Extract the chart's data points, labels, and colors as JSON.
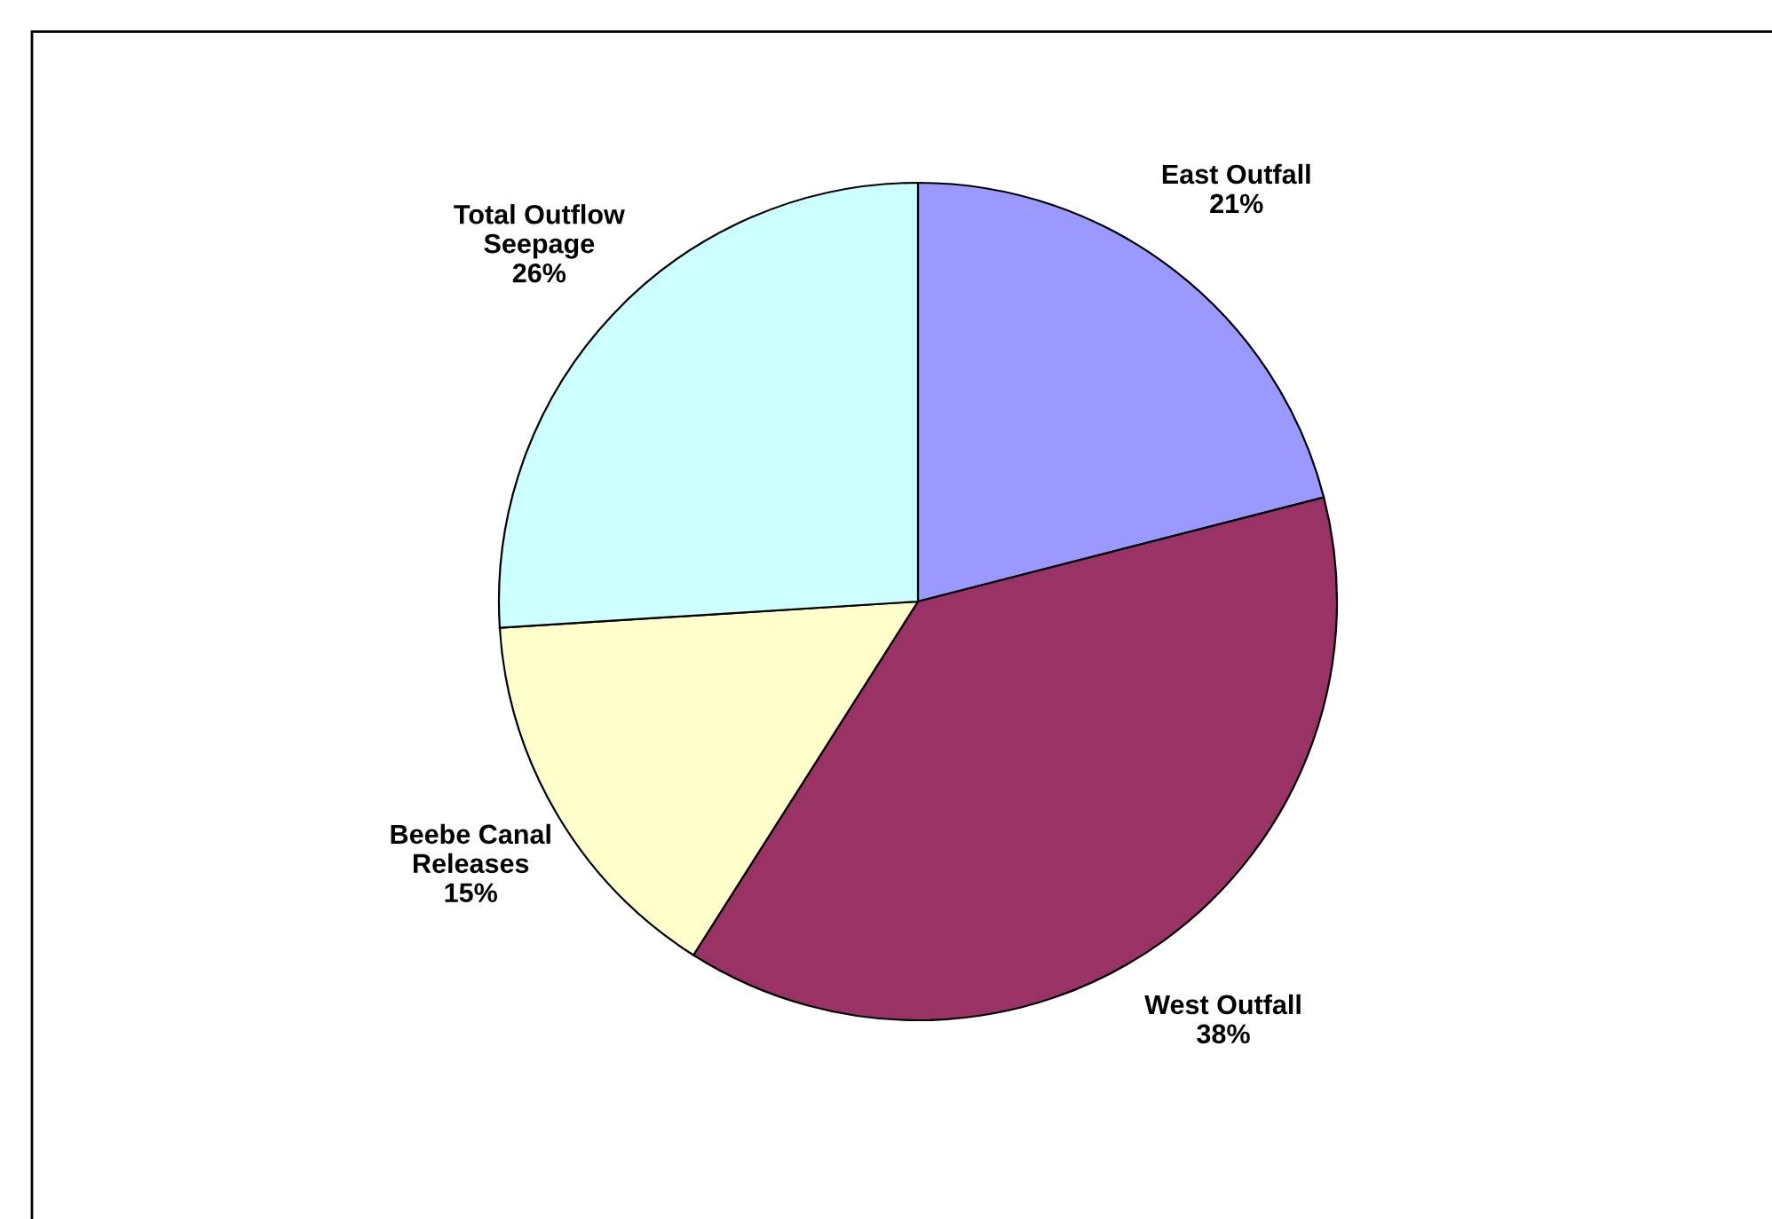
{
  "chart_data": {
    "type": "pie",
    "categories": [
      "East Outfall",
      "West Outfall",
      "Beebe Canal\nReleases",
      "Total Outflow\nSeepage"
    ],
    "values": [
      21,
      38,
      15,
      26
    ],
    "value_labels": [
      "21%",
      "38%",
      "15%",
      "26%"
    ],
    "colors": [
      "#9999ff",
      "#993366",
      "#ffffcc",
      "#ccffff"
    ],
    "legend": false
  }
}
